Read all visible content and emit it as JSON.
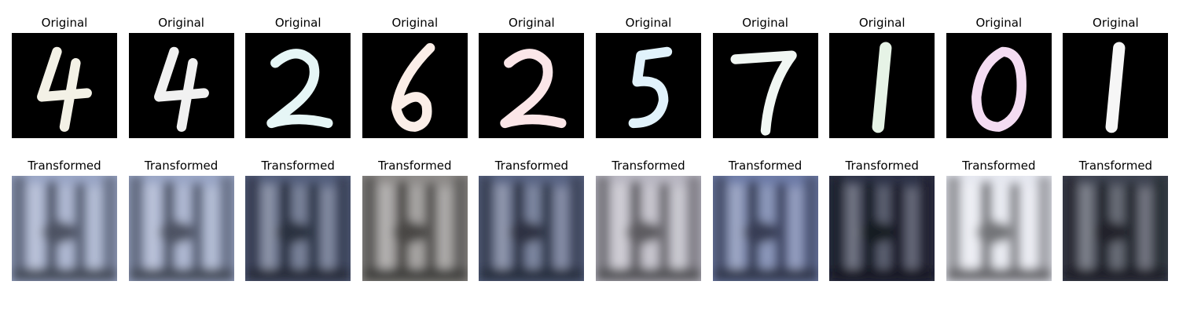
{
  "figure": {
    "row_titles": {
      "top": "Original",
      "bottom": "Transformed"
    },
    "originals": [
      {
        "digit": "4",
        "stroke_color": "#f3f1e6"
      },
      {
        "digit": "4",
        "stroke_color": "#f1f1f1"
      },
      {
        "digit": "2",
        "stroke_color": "#e6f6f6"
      },
      {
        "digit": "6",
        "stroke_color": "#fbeee8"
      },
      {
        "digit": "2",
        "stroke_color": "#fbe6e8"
      },
      {
        "digit": "5",
        "stroke_color": "#e1f2fb"
      },
      {
        "digit": "7",
        "stroke_color": "#f1f7f3"
      },
      {
        "digit": "1",
        "stroke_color": "#e6f3e6"
      },
      {
        "digit": "0",
        "stroke_color": "#f4dcf2"
      },
      {
        "digit": "1",
        "stroke_color": "#f6f6f6"
      }
    ],
    "transformed": [
      {
        "tone": "bright-blue",
        "base_color": "#9aa6c6"
      },
      {
        "tone": "bright-blue",
        "base_color": "#9aa6c6"
      },
      {
        "tone": "dark-blue",
        "base_color": "#55607e"
      },
      {
        "tone": "grey-beige",
        "base_color": "#8f8c8a"
      },
      {
        "tone": "dark-blue",
        "base_color": "#5a6585"
      },
      {
        "tone": "light-grey",
        "base_color": "#b9b7c2"
      },
      {
        "tone": "blue",
        "base_color": "#6e7ca8"
      },
      {
        "tone": "very-dark",
        "base_color": "#2e3348"
      },
      {
        "tone": "white",
        "base_color": "#e6e8f0"
      },
      {
        "tone": "dark-grey",
        "base_color": "#3f4452"
      }
    ]
  }
}
